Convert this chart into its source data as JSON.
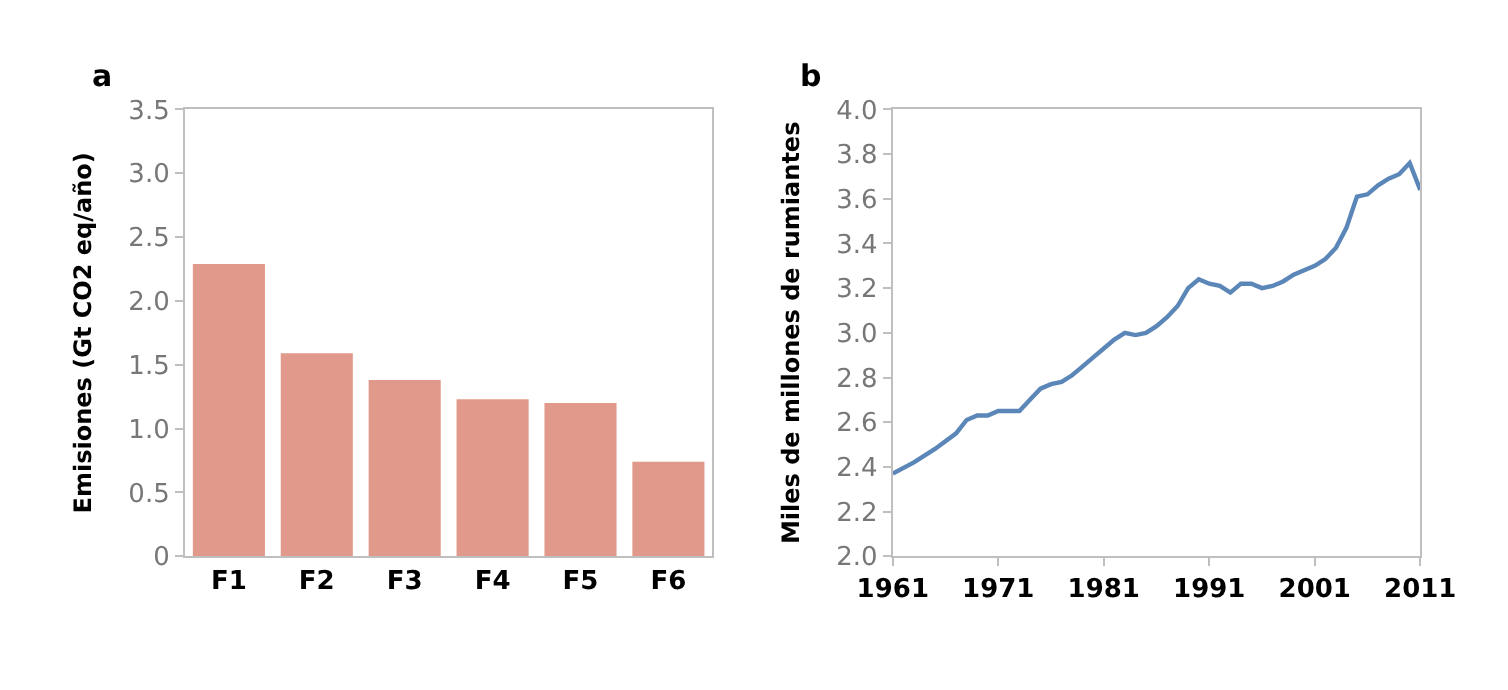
{
  "chart_data": [
    {
      "type": "bar",
      "title": "a",
      "ylabel": "Emisiones (Gt CO2 eq/año)",
      "categories": [
        "F1",
        "F2",
        "F3",
        "F4",
        "F5",
        "F6"
      ],
      "values": [
        2.29,
        1.59,
        1.38,
        1.23,
        1.2,
        0.74
      ],
      "color": "#e0998a",
      "ylim": [
        0,
        3.5
      ],
      "yticks": [
        {
          "value": 0,
          "label": "0"
        },
        {
          "value": 0.5,
          "label": "0.5"
        },
        {
          "value": 1,
          "label": "1.0"
        },
        {
          "value": 1.5,
          "label": "1.5"
        },
        {
          "value": 2,
          "label": "2.0"
        },
        {
          "value": 2.5,
          "label": "2.5"
        },
        {
          "value": 3,
          "label": "3.0"
        },
        {
          "value": 3.5,
          "label": "3.5"
        }
      ]
    },
    {
      "type": "line",
      "title": "b",
      "ylabel": "Miles de millones de rumiantes",
      "x": [
        1961,
        1963,
        1965,
        1967,
        1968,
        1969,
        1970,
        1971,
        1972,
        1973,
        1974,
        1975,
        1976,
        1977,
        1978,
        1979,
        1980,
        1981,
        1982,
        1983,
        1984,
        1985,
        1986,
        1987,
        1988,
        1989,
        1990,
        1991,
        1992,
        1993,
        1994,
        1995,
        1996,
        1997,
        1998,
        1999,
        2000,
        2001,
        2002,
        2003,
        2004,
        2005,
        2006,
        2007,
        2008,
        2009,
        2010,
        2011
      ],
      "series": [
        {
          "color": "#5b86b8",
          "values": [
            2.37,
            2.42,
            2.48,
            2.55,
            2.61,
            2.63,
            2.63,
            2.65,
            2.65,
            2.65,
            2.7,
            2.75,
            2.77,
            2.78,
            2.81,
            2.85,
            2.89,
            2.93,
            2.97,
            3.0,
            2.99,
            3.0,
            3.03,
            3.07,
            3.12,
            3.2,
            3.24,
            3.22,
            3.21,
            3.18,
            3.22,
            3.22,
            3.2,
            3.21,
            3.23,
            3.26,
            3.28,
            3.3,
            3.33,
            3.38,
            3.47,
            3.61,
            3.62,
            3.66,
            3.69,
            3.71,
            3.76,
            3.64
          ]
        }
      ],
      "xlim": [
        1961,
        2011
      ],
      "xticks": [
        1961,
        1971,
        1981,
        1991,
        2001,
        2011
      ],
      "ylim": [
        2.0,
        4.0
      ],
      "yticks": [
        {
          "value": 2,
          "label": "2.0"
        },
        {
          "value": 2.2,
          "label": "2.2"
        },
        {
          "value": 2.4,
          "label": "2.4"
        },
        {
          "value": 2.6,
          "label": "2.6"
        },
        {
          "value": 2.8,
          "label": "2.8"
        },
        {
          "value": 3,
          "label": "3.0"
        },
        {
          "value": 3.2,
          "label": "3.2"
        },
        {
          "value": 3.4,
          "label": "3.4"
        },
        {
          "value": 3.6,
          "label": "3.6"
        },
        {
          "value": 3.8,
          "label": "3.8"
        },
        {
          "value": 4,
          "label": "4.0"
        }
      ],
      "marker": "none",
      "line_style": "solid"
    }
  ]
}
